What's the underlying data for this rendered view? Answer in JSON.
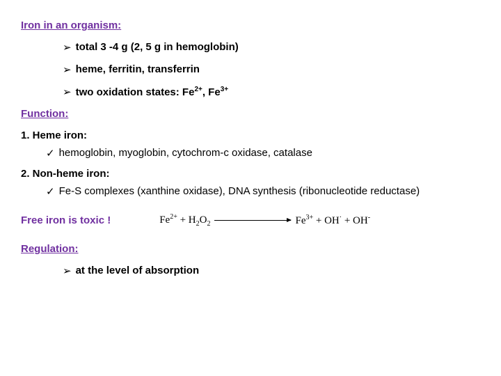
{
  "sections": {
    "topHeading": "Iron in an organism:",
    "bullets": [
      "total 3 -4 g (2, 5 g in hemoglobin)",
      "heme, ferritin, transferrin",
      "two oxidation states: Fe"
    ],
    "oxState1": "2+",
    "oxState2": "3+",
    "functionHeading": "Function:",
    "hemeHeading": "1. Heme iron:",
    "hemeItem": "hemoglobin, myoglobin, cytochrom-c oxidase, catalase",
    "nonHemeHeading": "2. Non-heme iron:",
    "nonHemeItem": "Fe-S complexes (xanthine oxidase), DNA synthesis (ribonucleotide reductase)",
    "toxicLabel": "Free iron is toxic !",
    "react_left_fe": "Fe",
    "react_left_sup": "2+",
    "react_plus": " + H",
    "react_h2o2_2a": "2",
    "react_o": "O",
    "react_h2o2_2b": "2",
    "react_right_fe": "Fe",
    "react_right_sup": "3+",
    "react_oh1": " + OH",
    "react_dot": "·",
    "react_oh2": " + OH",
    "react_minus": "-",
    "regulationHeading": "Regulation:",
    "regulationItem": "at the level of absorption"
  }
}
